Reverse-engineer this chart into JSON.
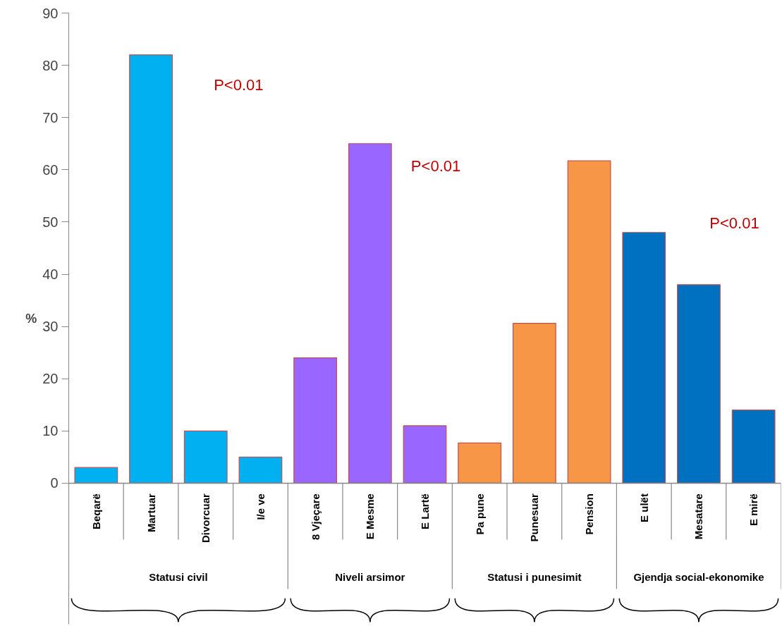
{
  "chart_data": {
    "type": "bar",
    "ylabel": "%",
    "categories": [
      "Beqarë",
      "Martuar",
      "Divorcuar",
      "I/e ve",
      "8 Vjeçare",
      "E Mesme",
      "E Lartë",
      "Pa pune",
      "Punesuar",
      "Pension",
      "E ulët",
      "Mesatare",
      "E mirë"
    ],
    "values": [
      3,
      82,
      10,
      5,
      24,
      65,
      11,
      7.7,
      30.6,
      61.7,
      48,
      38,
      14
    ],
    "colors": [
      "#00b0f0",
      "#00b0f0",
      "#00b0f0",
      "#00b0f0",
      "#9966ff",
      "#9966ff",
      "#9966ff",
      "#f79646",
      "#f79646",
      "#f79646",
      "#0070c0",
      "#0070c0",
      "#0070c0"
    ],
    "ylim": [
      0,
      90
    ],
    "yticks": [
      0,
      10,
      20,
      30,
      40,
      50,
      60,
      70,
      80,
      90
    ],
    "annotations": [
      "P<0.01",
      "P<0.01",
      "P<0.01",
      "Statusi civil",
      "Niveli arsimor",
      "Statusi i punesimit",
      "Gjendja social-ekonomike"
    ]
  }
}
